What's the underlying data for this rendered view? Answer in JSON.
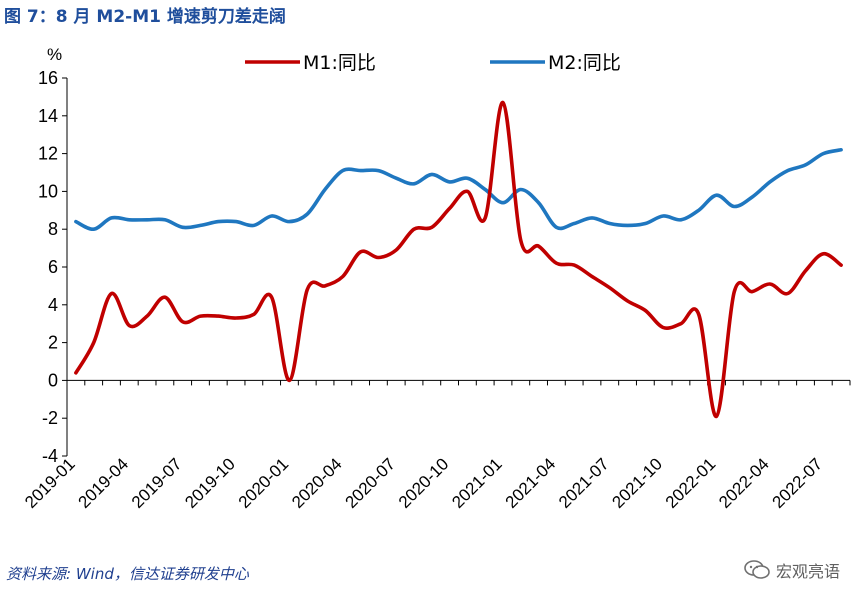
{
  "figure": {
    "title": "图 7：8 月 M2-M1 增速剪刀差走阔",
    "source": "资料来源: Wind，信达证券研发中心",
    "watermark_text": "宏观亮语",
    "watermark_icon": "wechat-logo-icon"
  },
  "chart_data": {
    "type": "line",
    "y_unit_label": "%",
    "ylim": [
      -4,
      16
    ],
    "yticks": [
      -4,
      -2,
      0,
      2,
      4,
      6,
      8,
      10,
      12,
      14,
      16
    ],
    "grid": false,
    "legend_position": "top",
    "x_tick_labels": [
      "2019-01",
      "2019-04",
      "2019-07",
      "2019-10",
      "2020-01",
      "2020-04",
      "2020-07",
      "2020-10",
      "2021-01",
      "2021-04",
      "2021-07",
      "2021-10",
      "2022-01",
      "2022-04",
      "2022-07"
    ],
    "x": [
      "2019-01",
      "2019-02",
      "2019-03",
      "2019-04",
      "2019-05",
      "2019-06",
      "2019-07",
      "2019-08",
      "2019-09",
      "2019-10",
      "2019-11",
      "2019-12",
      "2020-01",
      "2020-02",
      "2020-03",
      "2020-04",
      "2020-05",
      "2020-06",
      "2020-07",
      "2020-08",
      "2020-09",
      "2020-10",
      "2020-11",
      "2020-12",
      "2021-01",
      "2021-02",
      "2021-03",
      "2021-04",
      "2021-05",
      "2021-06",
      "2021-07",
      "2021-08",
      "2021-09",
      "2021-10",
      "2021-11",
      "2021-12",
      "2022-01",
      "2022-02",
      "2022-03",
      "2022-04",
      "2022-05",
      "2022-06",
      "2022-07",
      "2022-08"
    ],
    "series": [
      {
        "name": "M1:同比",
        "color": "#c00000",
        "values": [
          0.4,
          2.0,
          4.6,
          2.9,
          3.4,
          4.4,
          3.1,
          3.4,
          3.4,
          3.3,
          3.5,
          4.4,
          0.0,
          4.8,
          5.0,
          5.5,
          6.8,
          6.5,
          6.9,
          8.0,
          8.1,
          9.1,
          10.0,
          8.6,
          14.7,
          7.4,
          7.1,
          6.2,
          6.1,
          5.5,
          4.9,
          4.2,
          3.7,
          2.8,
          3.0,
          3.5,
          -1.9,
          4.7,
          4.7,
          5.1,
          4.6,
          5.8,
          6.7,
          6.1
        ]
      },
      {
        "name": "M2:同比",
        "color": "#1f77c0",
        "values": [
          8.4,
          8.0,
          8.6,
          8.5,
          8.5,
          8.5,
          8.1,
          8.2,
          8.4,
          8.4,
          8.2,
          8.7,
          8.4,
          8.8,
          10.1,
          11.1,
          11.1,
          11.1,
          10.7,
          10.4,
          10.9,
          10.5,
          10.7,
          10.1,
          9.4,
          10.1,
          9.4,
          8.1,
          8.3,
          8.6,
          8.3,
          8.2,
          8.3,
          8.7,
          8.5,
          9.0,
          9.8,
          9.2,
          9.7,
          10.5,
          11.1,
          11.4,
          12.0,
          12.2
        ]
      }
    ]
  }
}
